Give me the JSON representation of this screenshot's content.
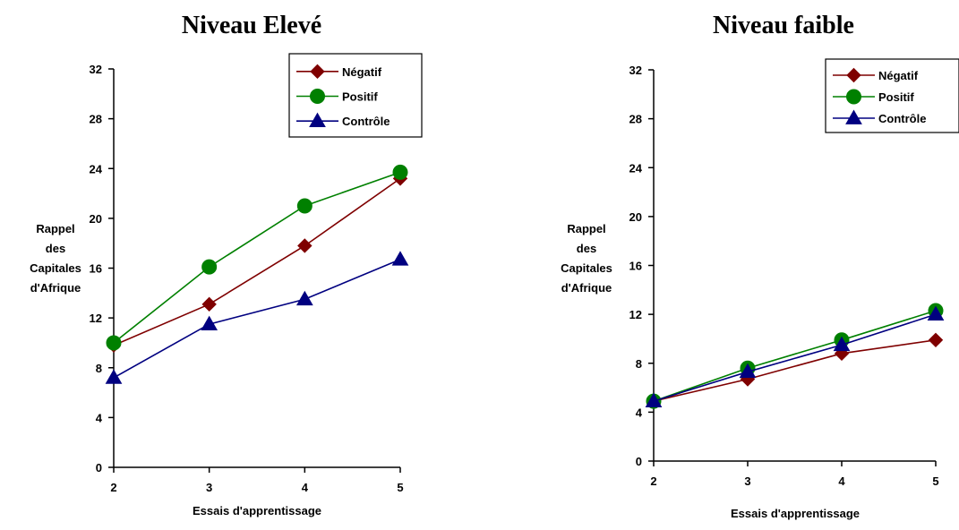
{
  "chart_data": [
    {
      "type": "line",
      "title": "Niveau Elevé",
      "xlabel": "Essais d'apprentissage",
      "ylabel": [
        "Rappel",
        "des",
        "Capitales",
        "d'Afrique"
      ],
      "x": [
        2,
        3,
        4,
        5
      ],
      "xticks": [
        "2",
        "3",
        "4",
        "5"
      ],
      "ylim": [
        0,
        32
      ],
      "yticks": [
        "0",
        "4",
        "8",
        "12",
        "16",
        "20",
        "24",
        "28",
        "32"
      ],
      "legend_position": "top-right",
      "series": [
        {
          "name": "Négatif",
          "values": [
            9.8,
            13.1,
            17.8,
            23.2
          ],
          "color": "#7f0000",
          "marker": "diamond"
        },
        {
          "name": "Positif",
          "values": [
            10.0,
            16.1,
            21.0,
            23.7
          ],
          "color": "#008000",
          "marker": "circle"
        },
        {
          "name": "Contrôle",
          "values": [
            7.2,
            11.5,
            13.5,
            16.7
          ],
          "color": "#000080",
          "marker": "triangle"
        }
      ]
    },
    {
      "type": "line",
      "title": "Niveau faible",
      "xlabel": "Essais d'apprentissage",
      "ylabel": [
        "Rappel",
        "des",
        "Capitales",
        "d'Afrique"
      ],
      "x": [
        2,
        3,
        4,
        5
      ],
      "xticks": [
        "2",
        "3",
        "4",
        "5"
      ],
      "ylim": [
        0,
        32
      ],
      "yticks": [
        "0",
        "4",
        "8",
        "12",
        "16",
        "20",
        "24",
        "28",
        "32"
      ],
      "legend_position": "top-right",
      "series": [
        {
          "name": "Négatif",
          "values": [
            4.9,
            6.7,
            8.8,
            9.9
          ],
          "color": "#7f0000",
          "marker": "diamond"
        },
        {
          "name": "Positif",
          "values": [
            4.9,
            7.6,
            9.9,
            12.3
          ],
          "color": "#008000",
          "marker": "circle"
        },
        {
          "name": "Contrôle",
          "values": [
            4.9,
            7.3,
            9.5,
            12.0
          ],
          "color": "#000080",
          "marker": "triangle"
        }
      ]
    }
  ]
}
